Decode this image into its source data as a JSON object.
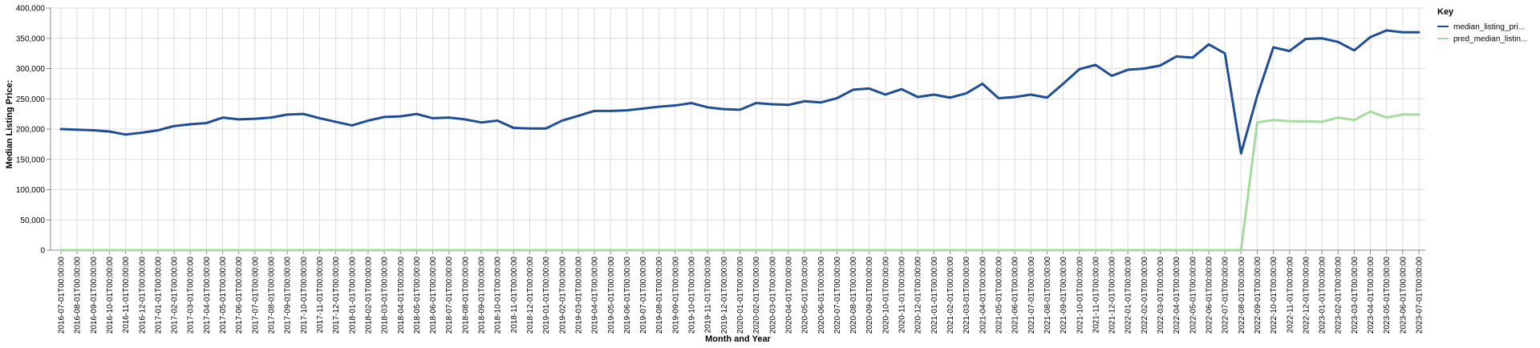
{
  "chart_data": {
    "type": "line",
    "xlabel": "Month and Year",
    "ylabel": "Median Listing Price:",
    "ylim": [
      0,
      400000
    ],
    "y_ticks": [
      "0",
      "50,000",
      "100,000",
      "150,000",
      "200,000",
      "250,000",
      "300,000",
      "350,000",
      "400,000"
    ],
    "grid": true,
    "legend": {
      "title": "Key",
      "position": "right"
    },
    "x": [
      "2016-07-01T00:00:00",
      "2016-08-01T00:00:00",
      "2016-09-01T00:00:00",
      "2016-10-01T00:00:00",
      "2016-11-01T00:00:00",
      "2016-12-01T00:00:00",
      "2017-01-01T00:00:00",
      "2017-02-01T00:00:00",
      "2017-03-01T00:00:00",
      "2017-04-01T00:00:00",
      "2017-05-01T00:00:00",
      "2017-06-01T00:00:00",
      "2017-07-01T00:00:00",
      "2017-08-01T00:00:00",
      "2017-09-01T00:00:00",
      "2017-10-01T00:00:00",
      "2017-11-01T00:00:00",
      "2017-12-01T00:00:00",
      "2018-01-01T00:00:00",
      "2018-02-01T00:00:00",
      "2018-03-01T00:00:00",
      "2018-04-01T00:00:00",
      "2018-05-01T00:00:00",
      "2018-06-01T00:00:00",
      "2018-07-01T00:00:00",
      "2018-08-01T00:00:00",
      "2018-09-01T00:00:00",
      "2018-10-01T00:00:00",
      "2018-11-01T00:00:00",
      "2018-12-01T00:00:00",
      "2019-01-01T00:00:00",
      "2019-02-01T00:00:00",
      "2019-03-01T00:00:00",
      "2019-04-01T00:00:00",
      "2019-05-01T00:00:00",
      "2019-06-01T00:00:00",
      "2019-07-01T00:00:00",
      "2019-08-01T00:00:00",
      "2019-09-01T00:00:00",
      "2019-10-01T00:00:00",
      "2019-11-01T00:00:00",
      "2019-12-01T00:00:00",
      "2020-01-01T00:00:00",
      "2020-02-01T00:00:00",
      "2020-03-01T00:00:00",
      "2020-04-01T00:00:00",
      "2020-05-01T00:00:00",
      "2020-06-01T00:00:00",
      "2020-07-01T00:00:00",
      "2020-08-01T00:00:00",
      "2020-09-01T00:00:00",
      "2020-10-01T00:00:00",
      "2020-11-01T00:00:00",
      "2020-12-01T00:00:00",
      "2021-01-01T00:00:00",
      "2021-02-01T00:00:00",
      "2021-03-01T00:00:00",
      "2021-04-01T00:00:00",
      "2021-05-01T00:00:00",
      "2021-06-01T00:00:00",
      "2021-07-01T00:00:00",
      "2021-08-01T00:00:00",
      "2021-09-01T00:00:00",
      "2021-10-01T00:00:00",
      "2021-11-01T00:00:00",
      "2021-12-01T00:00:00",
      "2022-01-01T00:00:00",
      "2022-02-01T00:00:00",
      "2022-03-01T00:00:00",
      "2022-04-01T00:00:00",
      "2022-05-01T00:00:00",
      "2022-06-01T00:00:00",
      "2022-07-01T00:00:00",
      "2022-08-01T00:00:00",
      "2022-09-01T00:00:00",
      "2022-10-01T00:00:00",
      "2022-11-01T00:00:00",
      "2022-12-01T00:00:00",
      "2023-01-01T00:00:00",
      "2023-02-01T00:00:00",
      "2023-03-01T00:00:00",
      "2023-04-01T00:00:00",
      "2023-05-01T00:00:00",
      "2023-06-01T00:00:00",
      "2023-07-01T00:00:00"
    ],
    "series": [
      {
        "name": "median_listing_pri...",
        "color": "#1f4e96",
        "values": [
          200000,
          199000,
          198000,
          196000,
          191000,
          194000,
          198000,
          205000,
          208000,
          210000,
          219000,
          216000,
          217000,
          219000,
          224000,
          225000,
          218000,
          212000,
          206000,
          214000,
          220000,
          221000,
          225000,
          218000,
          219000,
          216000,
          211000,
          214000,
          202000,
          201000,
          201000,
          214000,
          222000,
          230000,
          230000,
          231000,
          234000,
          237000,
          239000,
          243000,
          236000,
          233000,
          232000,
          243000,
          241000,
          240000,
          246000,
          244000,
          251000,
          265000,
          267000,
          257000,
          266000,
          253000,
          257000,
          252000,
          259000,
          275000,
          251000,
          253000,
          257000,
          252000,
          275000,
          299000,
          306000,
          288000,
          298000,
          300000,
          305000,
          320000,
          318000,
          340000,
          325000,
          160000,
          255000,
          335000,
          329000,
          349000,
          350000,
          344000,
          330000,
          352000,
          363000,
          360000,
          360000
        ]
      },
      {
        "name": "pred_median_listin...",
        "color": "#a6dba0",
        "values": [
          0,
          0,
          0,
          0,
          0,
          0,
          0,
          0,
          0,
          0,
          0,
          0,
          0,
          0,
          0,
          0,
          0,
          0,
          0,
          0,
          0,
          0,
          0,
          0,
          0,
          0,
          0,
          0,
          0,
          0,
          0,
          0,
          0,
          0,
          0,
          0,
          0,
          0,
          0,
          0,
          0,
          0,
          0,
          0,
          0,
          0,
          0,
          0,
          0,
          0,
          0,
          0,
          0,
          0,
          0,
          0,
          0,
          0,
          0,
          0,
          0,
          0,
          0,
          0,
          0,
          0,
          0,
          0,
          0,
          0,
          0,
          0,
          0,
          0,
          211000,
          215000,
          213000,
          213000,
          212000,
          219000,
          215000,
          229000,
          219000,
          224000,
          224000
        ]
      }
    ]
  }
}
